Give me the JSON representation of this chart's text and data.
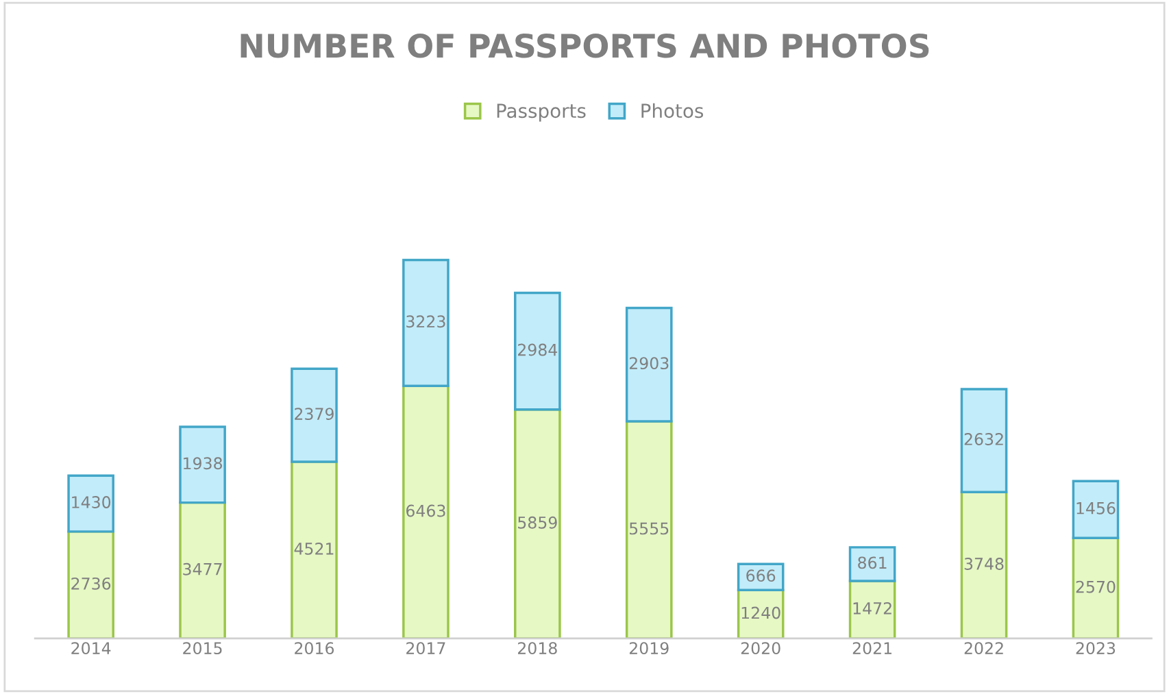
{
  "chart_data": {
    "type": "bar",
    "title": "NUMBER OF PASSPORTS AND PHOTOS",
    "categories": [
      "2014",
      "2015",
      "2016",
      "2017",
      "2018",
      "2019",
      "2020",
      "2021",
      "2022",
      "2023"
    ],
    "series": [
      {
        "name": "Passports",
        "color": "#e6f8c4",
        "values": [
          2736,
          3477,
          4521,
          6463,
          5859,
          5555,
          1240,
          1472,
          3748,
          2570
        ]
      },
      {
        "name": "Photos",
        "color": "#c2ecfa",
        "values": [
          1430,
          1938,
          2379,
          3223,
          2984,
          2903,
          666,
          861,
          2632,
          1456
        ]
      }
    ],
    "stacked": true,
    "data_labels": true,
    "legend": "top",
    "grid": false,
    "tick_labels": "x"
  }
}
